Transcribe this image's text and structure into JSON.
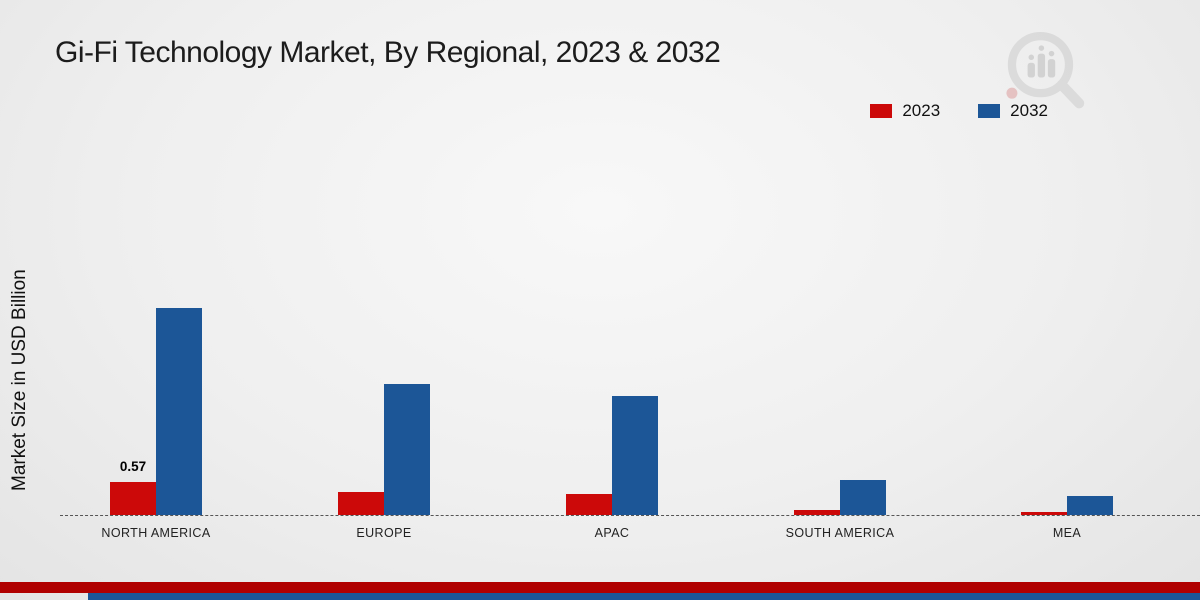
{
  "title": "Gi-Fi Technology Market, By Regional, 2023 & 2032",
  "ylabel": "Market Size in USD Billion",
  "chart_data": {
    "type": "bar",
    "categories": [
      "NORTH AMERICA",
      "EUROPE",
      "APAC",
      "SOUTH AMERICA",
      "MEA"
    ],
    "series": [
      {
        "name": "2023",
        "color": "#cc0909",
        "values": [
          0.57,
          0.4,
          0.37,
          0.09,
          0.05
        ]
      },
      {
        "name": "2032",
        "color": "#1c5697",
        "values": [
          3.57,
          2.26,
          2.05,
          0.6,
          0.32
        ]
      }
    ],
    "annotations": [
      {
        "category": "NORTH AMERICA",
        "series": "2023",
        "text": "0.57"
      }
    ],
    "ylabel": "Market Size in USD Billion",
    "xlabel": "",
    "ylim": [
      0,
      4
    ],
    "grid": false,
    "legend_position": "top-right",
    "baseline_style": "dashed"
  },
  "branding": {
    "logo_icon": "magnifier-bar-chart-icon"
  },
  "footer": {
    "band_colors": [
      "#b00000",
      "#1c5697"
    ]
  }
}
